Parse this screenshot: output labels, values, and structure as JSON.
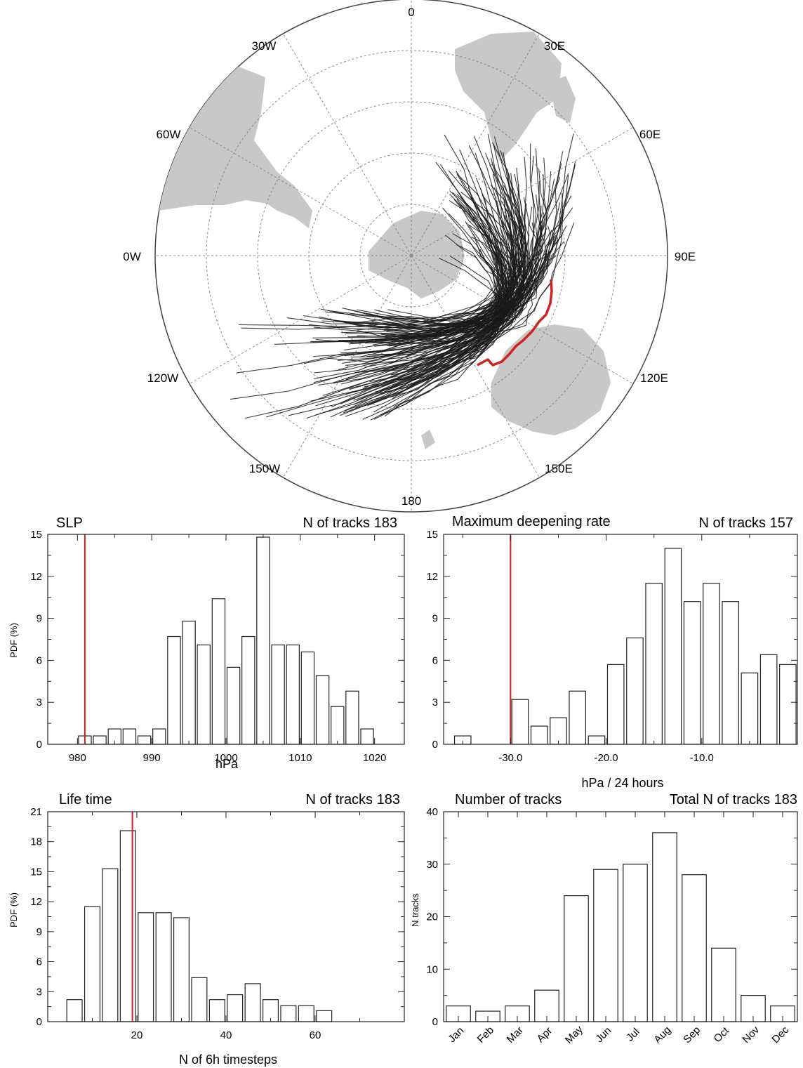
{
  "colors": {
    "track": "#1a1a1a",
    "highlight": "#d0211c",
    "land": "#c8c8c8",
    "bar_edge": "#222222"
  },
  "map": {
    "lon_labels": [
      "0",
      "30E",
      "60E",
      "90E",
      "120E",
      "150E",
      "180",
      "150W",
      "120W",
      "0W",
      "60W",
      "30W"
    ]
  },
  "chart_data": [
    {
      "type": "bar",
      "title": "SLP",
      "note": "N of tracks 183",
      "xlabel": "hPa",
      "ylabel": "PDF (%)",
      "xlim": [
        976,
        1024
      ],
      "ylim": [
        0,
        15
      ],
      "xticks": [
        "980",
        "990",
        "1000",
        "1010",
        "1020"
      ],
      "yticks": [
        "0",
        "3",
        "6",
        "9",
        "12",
        "15"
      ],
      "bin_width": 2,
      "bins": [
        981,
        983,
        985,
        987,
        989,
        991,
        993,
        995,
        997,
        999,
        1001,
        1003,
        1005,
        1007,
        1009,
        1011,
        1013,
        1015,
        1017,
        1019
      ],
      "values": [
        0.6,
        0.6,
        1.1,
        1.1,
        0.6,
        1.1,
        7.7,
        8.8,
        7.1,
        10.4,
        5.5,
        7.7,
        14.8,
        7.1,
        7.1,
        6.6,
        4.9,
        2.7,
        3.8,
        1.1
      ],
      "marker": 981
    },
    {
      "type": "bar",
      "title": "Maximum deepening rate",
      "note": "N of tracks 157",
      "xlabel": "hPa / 24 hours",
      "ylabel": "",
      "xlim": [
        -37,
        0
      ],
      "ylim": [
        0,
        15
      ],
      "xticks": [
        "-30.0",
        "-20.0",
        "-10.0"
      ],
      "yticks": [
        "0",
        "3",
        "6",
        "9",
        "12",
        "15"
      ],
      "bin_width": 2,
      "bins": [
        -35,
        -33,
        -31,
        -29,
        -27,
        -25,
        -23,
        -21,
        -19,
        -17,
        -15,
        -13,
        -11,
        -9,
        -7,
        -5,
        -3,
        -1
      ],
      "values": [
        0.6,
        0,
        0,
        3.2,
        1.3,
        1.9,
        3.8,
        0.6,
        5.7,
        7.6,
        11.5,
        14.0,
        10.2,
        11.5,
        10.2,
        5.1,
        6.4,
        5.7
      ],
      "marker": -30
    },
    {
      "type": "bar",
      "title": "Life time",
      "note": "N of tracks 183",
      "xlabel": "N of 6h timesteps",
      "ylabel": "PDF (%)",
      "xlim": [
        0,
        80
      ],
      "ylim": [
        0,
        21
      ],
      "xticks": [
        "20",
        "40",
        "60"
      ],
      "yticks": [
        "0",
        "3",
        "6",
        "9",
        "12",
        "15",
        "18",
        "21"
      ],
      "bin_width": 4,
      "bins": [
        6,
        10,
        14,
        18,
        22,
        26,
        30,
        34,
        38,
        42,
        46,
        50,
        54,
        58,
        62
      ],
      "values": [
        2.2,
        11.5,
        15.3,
        19.1,
        10.9,
        10.9,
        10.4,
        4.4,
        2.2,
        2.7,
        3.8,
        2.2,
        1.6,
        1.6,
        1.1
      ],
      "marker": 19
    },
    {
      "type": "bar",
      "title": "Number of tracks",
      "note": "Total N of tracks 183",
      "xlabel": "",
      "ylabel": "N tracks",
      "ylim": [
        0,
        40
      ],
      "yticks": [
        "0",
        "10",
        "20",
        "30",
        "40"
      ],
      "categories": [
        "Jan",
        "Feb",
        "Mar",
        "Apr",
        "May",
        "Jun",
        "Jul",
        "Aug",
        "Sep",
        "Oct",
        "Nov",
        "Dec"
      ],
      "values": [
        3,
        2,
        3,
        6,
        24,
        29,
        30,
        36,
        28,
        14,
        5,
        3
      ]
    }
  ]
}
